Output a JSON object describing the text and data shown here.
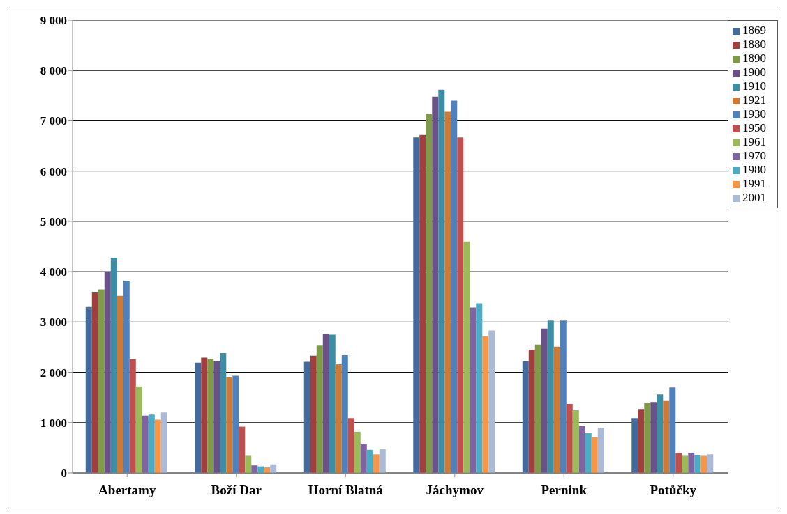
{
  "chart_data": {
    "type": "bar",
    "categories": [
      "Abertamy",
      "Boží Dar",
      "Horní Blatná",
      "Jáchymov",
      "Pernink",
      "Potůčky"
    ],
    "series": [
      {
        "name": "1869",
        "color": "#426a9c",
        "values": [
          3300,
          2190,
          2210,
          6670,
          2220,
          1090
        ]
      },
      {
        "name": "1880",
        "color": "#a0403e",
        "values": [
          3600,
          2290,
          2330,
          6720,
          2450,
          1270
        ]
      },
      {
        "name": "1890",
        "color": "#7f9a48",
        "values": [
          3650,
          2270,
          2530,
          7130,
          2550,
          1400
        ]
      },
      {
        "name": "1900",
        "color": "#6a5187",
        "values": [
          4000,
          2230,
          2770,
          7480,
          2870,
          1410
        ]
      },
      {
        "name": "1910",
        "color": "#3c8ea5",
        "values": [
          4280,
          2380,
          2750,
          7620,
          3030,
          1560
        ]
      },
      {
        "name": "1921",
        "color": "#cc7a35",
        "values": [
          3520,
          1910,
          2160,
          7180,
          2510,
          1430
        ]
      },
      {
        "name": "1930",
        "color": "#4f81bd",
        "values": [
          3820,
          1930,
          2340,
          7400,
          3030,
          1700
        ]
      },
      {
        "name": "1950",
        "color": "#c0504d",
        "values": [
          2260,
          920,
          1090,
          6670,
          1370,
          400
        ]
      },
      {
        "name": "1961",
        "color": "#9bbb59",
        "values": [
          1720,
          340,
          820,
          4600,
          1250,
          340
        ]
      },
      {
        "name": "1970",
        "color": "#8064a2",
        "values": [
          1140,
          150,
          580,
          3290,
          930,
          400
        ]
      },
      {
        "name": "1980",
        "color": "#4bacc6",
        "values": [
          1160,
          130,
          460,
          3370,
          790,
          360
        ]
      },
      {
        "name": "1991",
        "color": "#f79646",
        "values": [
          1060,
          110,
          370,
          2720,
          710,
          340
        ]
      },
      {
        "name": "2001",
        "color": "#aabad7",
        "values": [
          1200,
          170,
          470,
          2830,
          900,
          370
        ]
      }
    ],
    "ylim": [
      0,
      9000
    ],
    "yticks": [
      {
        "value": 0,
        "label": "0"
      },
      {
        "value": 1000,
        "label": "1 000"
      },
      {
        "value": 2000,
        "label": "2 000"
      },
      {
        "value": 3000,
        "label": "3 000"
      },
      {
        "value": 4000,
        "label": "4 000"
      },
      {
        "value": 5000,
        "label": "5 000"
      },
      {
        "value": 6000,
        "label": "6 000"
      },
      {
        "value": 7000,
        "label": "7 000"
      },
      {
        "value": 8000,
        "label": "8 000"
      },
      {
        "value": 9000,
        "label": "9 000"
      }
    ],
    "grid": "y",
    "legend": "top right"
  }
}
